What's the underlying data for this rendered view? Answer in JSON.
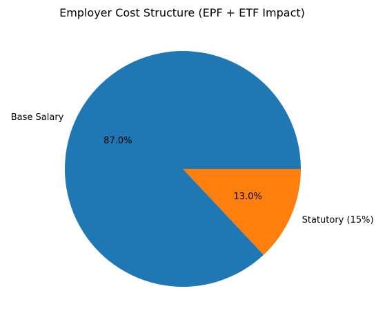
{
  "chart_data": {
    "type": "pie",
    "title": "Employer Cost Structure (EPF + ETF Impact)",
    "slices": [
      {
        "label": "Base Salary",
        "value": 87.0,
        "pct_label": "87.0%",
        "color": "#1f77b4"
      },
      {
        "label": "Statutory (15%)",
        "value": 13.0,
        "pct_label": "13.0%",
        "color": "#ff7f0e"
      }
    ],
    "start_angle_deg": 0,
    "direction": "counterclockwise",
    "legend": "none"
  }
}
